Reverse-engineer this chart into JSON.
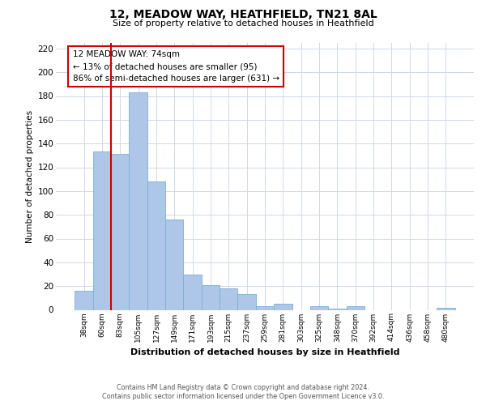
{
  "title": "12, MEADOW WAY, HEATHFIELD, TN21 8AL",
  "subtitle": "Size of property relative to detached houses in Heathfield",
  "xlabel": "Distribution of detached houses by size in Heathfield",
  "ylabel": "Number of detached properties",
  "bin_labels": [
    "38sqm",
    "60sqm",
    "83sqm",
    "105sqm",
    "127sqm",
    "149sqm",
    "171sqm",
    "193sqm",
    "215sqm",
    "237sqm",
    "259sqm",
    "281sqm",
    "303sqm",
    "325sqm",
    "348sqm",
    "370sqm",
    "392sqm",
    "414sqm",
    "436sqm",
    "458sqm",
    "480sqm"
  ],
  "bar_heights": [
    16,
    133,
    131,
    183,
    108,
    76,
    30,
    21,
    18,
    13,
    3,
    5,
    0,
    3,
    1,
    3,
    0,
    0,
    0,
    0,
    2
  ],
  "bar_color": "#aec6e8",
  "bar_edge_color": "#7aafd4",
  "ylim": [
    0,
    225
  ],
  "yticks": [
    0,
    20,
    40,
    60,
    80,
    100,
    120,
    140,
    160,
    180,
    200,
    220
  ],
  "annotation_title": "12 MEADOW WAY: 74sqm",
  "annotation_line1": "← 13% of detached houses are smaller (95)",
  "annotation_line2": "86% of semi-detached houses are larger (631) →",
  "annotation_box_color": "#ffffff",
  "annotation_box_edge": "#cc0000",
  "vline_color": "#cc0000",
  "vline_pos": 1.5,
  "footer1": "Contains HM Land Registry data © Crown copyright and database right 2024.",
  "footer2": "Contains public sector information licensed under the Open Government Licence v3.0.",
  "background_color": "#ffffff",
  "grid_color": "#d0d8e8"
}
